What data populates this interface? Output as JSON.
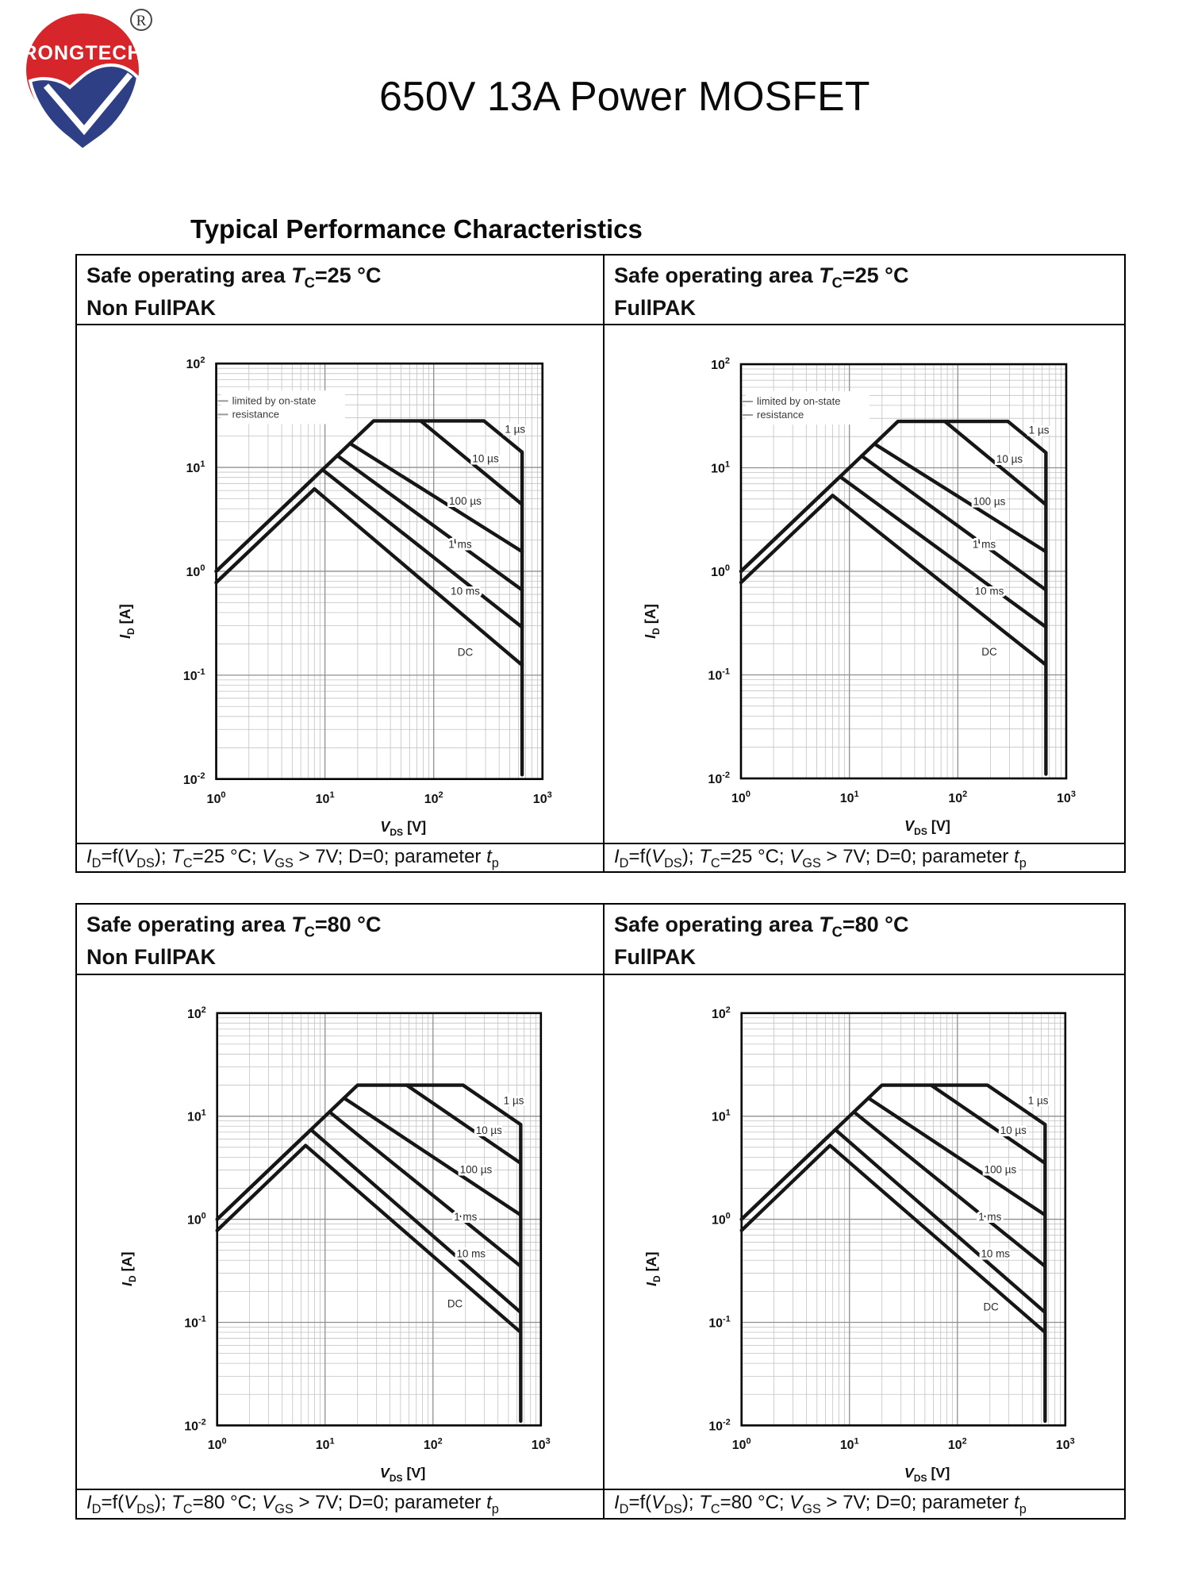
{
  "page": {
    "logo": {
      "name": "RONGTECH",
      "registered_mark": "®",
      "red": "#d6252b",
      "blue": "#2e3f85"
    },
    "title": "650V 13A Power MOSFET",
    "section_heading": "Typical Performance Characteristics"
  },
  "panels": [
    {
      "header_line1": "Safe operating area $T$_{C}=25 °C",
      "header_line2": "Non FullPAK",
      "caption": "$I$_{D}=f($V$_{DS}); $T$_{C}=25 °C; $V$_{GS} > 7V; D=0; parameter $t$_{p}",
      "chart_index": 0
    },
    {
      "header_line1": "Safe operating area $T$_{C}=25 °C",
      "header_line2": "FullPAK",
      "caption": "$I$_{D}=f($V$_{DS}); $T$_{C}=25 °C; $V$_{GS} > 7V; D=0; parameter $t$_{p}",
      "chart_index": 1
    },
    {
      "header_line1": "Safe operating area $T$_{C}=80 °C",
      "header_line2": "Non FullPAK",
      "caption": "$I$_{D}=f($V$_{DS}); $T$_{C}=80 °C; $V$_{GS} > 7V; D=0; parameter $t$_{p}",
      "chart_index": 2
    },
    {
      "header_line1": "Safe operating area $T$_{C}=80 °C",
      "header_line2": "FullPAK",
      "caption": "$I$_{D}=f($V$_{DS}); $T$_{C}=80 °C; $V$_{GS} > 7V; D=0; parameter $t$_{p}",
      "chart_index": 3
    }
  ],
  "chart_common": {
    "type": "line",
    "x_scale": "log",
    "y_scale": "log",
    "xlabel": {
      "sym": "V",
      "sub": "DS",
      "unit": " [V]"
    },
    "ylabel": {
      "sym": "I",
      "sub": "D",
      "unit": " [A]"
    },
    "xlim": [
      1,
      1000
    ],
    "ylim": [
      0.01,
      100
    ],
    "x_ticks": [
      {
        "base": "10",
        "exp": "0"
      },
      {
        "base": "10",
        "exp": "1"
      },
      {
        "base": "10",
        "exp": "2"
      },
      {
        "base": "10",
        "exp": "3"
      }
    ],
    "y_ticks": [
      {
        "base": "10",
        "exp": "2"
      },
      {
        "base": "10",
        "exp": "1"
      },
      {
        "base": "10",
        "exp": "0"
      },
      {
        "base": "10",
        "exp": "-1"
      },
      {
        "base": "10",
        "exp": "-2"
      }
    ],
    "grid": "log-major-minor",
    "curve_color": "#161616",
    "grid_major": "#8f8f8f",
    "grid_minor": "#c2c2c2",
    "label_color": "#2b2b2b",
    "breakdown_voltage_V": 650
  },
  "chart_data": [
    {
      "type": "line",
      "title": "Safe operating area TC=25 °C Non FullPAK",
      "tc_celsius": 25,
      "package": "Non FullPAK",
      "legend": [
        "limited by on-state",
        "resistance"
      ],
      "legend_position": "top-left",
      "series": [
        {
          "name": "1 µs",
          "points": [
            [
              1,
              1
            ],
            [
              28,
              28
            ],
            [
              290,
              28
            ],
            [
              650,
              14
            ],
            [
              650,
              0.011
            ]
          ],
          "label_at": [
            560,
            23
          ]
        },
        {
          "name": "10 µs",
          "points": [
            [
              76,
              28
            ],
            [
              650,
              4.4
            ]
          ],
          "label_at": [
            300,
            12
          ]
        },
        {
          "name": "100 µs",
          "points": [
            [
              17,
              17
            ],
            [
              650,
              1.55
            ]
          ],
          "label_at": [
            195,
            4.7
          ]
        },
        {
          "name": "1 ms",
          "points": [
            [
              13,
              13
            ],
            [
              650,
              0.66
            ]
          ],
          "label_at": [
            175,
            1.8
          ]
        },
        {
          "name": "10 ms",
          "points": [
            [
              1,
              1
            ],
            [
              9.5,
              9.5
            ],
            [
              650,
              0.29
            ]
          ],
          "label_at": [
            195,
            0.64
          ]
        },
        {
          "name": "DC",
          "points": [
            [
              1,
              0.78
            ],
            [
              8,
              6.2
            ],
            [
              650,
              0.125
            ]
          ],
          "label_at": [
            195,
            0.165
          ]
        }
      ]
    },
    {
      "type": "line",
      "title": "Safe operating area TC=25 °C FullPAK",
      "tc_celsius": 25,
      "package": "FullPAK",
      "legend": [
        "limited by on-state",
        "resistance"
      ],
      "legend_position": "top-left",
      "series": [
        {
          "name": "1 µs",
          "points": [
            [
              1,
              1
            ],
            [
              28,
              28
            ],
            [
              290,
              28
            ],
            [
              650,
              14
            ],
            [
              650,
              0.011
            ]
          ],
          "label_at": [
            560,
            23
          ]
        },
        {
          "name": "10 µs",
          "points": [
            [
              76,
              28
            ],
            [
              650,
              4.4
            ]
          ],
          "label_at": [
            300,
            12
          ]
        },
        {
          "name": "100 µs",
          "points": [
            [
              17,
              17
            ],
            [
              650,
              1.55
            ]
          ],
          "label_at": [
            195,
            4.7
          ]
        },
        {
          "name": "1 ms",
          "points": [
            [
              13,
              13
            ],
            [
              650,
              0.66
            ]
          ],
          "label_at": [
            175,
            1.8
          ]
        },
        {
          "name": "10 ms",
          "points": [
            [
              1,
              1
            ],
            [
              8.2,
              8.2
            ],
            [
              650,
              0.29
            ]
          ],
          "label_at": [
            195,
            0.64
          ]
        },
        {
          "name": "DC",
          "points": [
            [
              1,
              0.78
            ],
            [
              7,
              5.4
            ],
            [
              650,
              0.125
            ]
          ],
          "label_at": [
            195,
            0.165
          ]
        }
      ]
    },
    {
      "type": "line",
      "title": "Safe operating area TC=80 °C Non FullPAK",
      "tc_celsius": 80,
      "package": "Non FullPAK",
      "legend": null,
      "series": [
        {
          "name": "1 µs",
          "points": [
            [
              1,
              1
            ],
            [
              20,
              20
            ],
            [
              190,
              20
            ],
            [
              650,
              8.3
            ],
            [
              650,
              0.011
            ]
          ],
          "label_at": [
            560,
            14
          ]
        },
        {
          "name": "10 µs",
          "points": [
            [
              57,
              20
            ],
            [
              650,
              3.5
            ]
          ],
          "label_at": [
            330,
            7.2
          ]
        },
        {
          "name": "100 µs",
          "points": [
            [
              15,
              15
            ],
            [
              650,
              1.1
            ]
          ],
          "label_at": [
            250,
            3.0
          ]
        },
        {
          "name": "1 ms",
          "points": [
            [
              11,
              11
            ],
            [
              650,
              0.35
            ]
          ],
          "label_at": [
            200,
            1.05
          ]
        },
        {
          "name": "10 ms",
          "points": [
            [
              1,
              1
            ],
            [
              7.4,
              7.4
            ],
            [
              650,
              0.125
            ]
          ],
          "label_at": [
            225,
            0.46
          ]
        },
        {
          "name": "DC",
          "points": [
            [
              1,
              0.78
            ],
            [
              6.6,
              5.2
            ],
            [
              650,
              0.08
            ]
          ],
          "label_at": [
            160,
            0.15
          ]
        }
      ]
    },
    {
      "type": "line",
      "title": "Safe operating area TC=80 °C FullPAK",
      "tc_celsius": 80,
      "package": "FullPAK",
      "legend": null,
      "series": [
        {
          "name": "1 µs",
          "points": [
            [
              1,
              1
            ],
            [
              20,
              20
            ],
            [
              190,
              20
            ],
            [
              650,
              8.3
            ],
            [
              650,
              0.011
            ]
          ],
          "label_at": [
            560,
            14
          ]
        },
        {
          "name": "10 µs",
          "points": [
            [
              57,
              20
            ],
            [
              650,
              3.5
            ]
          ],
          "label_at": [
            330,
            7.2
          ]
        },
        {
          "name": "100 µs",
          "points": [
            [
              15,
              15
            ],
            [
              650,
              1.1
            ]
          ],
          "label_at": [
            250,
            3.0
          ]
        },
        {
          "name": "1 ms",
          "points": [
            [
              11,
              11
            ],
            [
              650,
              0.35
            ]
          ],
          "label_at": [
            200,
            1.05
          ]
        },
        {
          "name": "10 ms",
          "points": [
            [
              1,
              1
            ],
            [
              7.4,
              7.4
            ],
            [
              650,
              0.125
            ]
          ],
          "label_at": [
            225,
            0.46
          ]
        },
        {
          "name": "DC",
          "points": [
            [
              1,
              0.78
            ],
            [
              6.6,
              5.2
            ],
            [
              650,
              0.08
            ]
          ],
          "label_at": [
            205,
            0.14
          ]
        }
      ]
    }
  ]
}
